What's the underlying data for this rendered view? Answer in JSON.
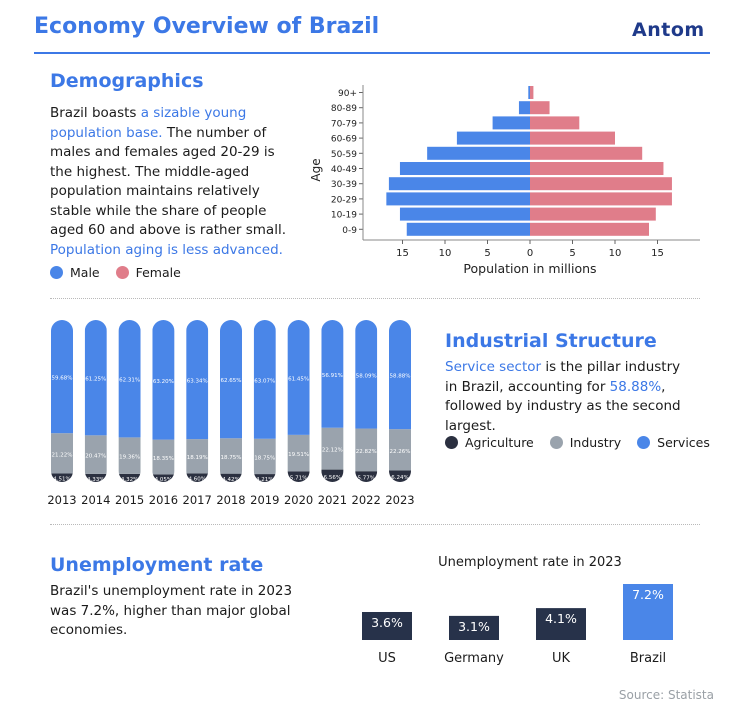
{
  "header": {
    "title": "Economy Overview of Brazil",
    "logo": "Antom"
  },
  "demographics": {
    "heading": "Demographics",
    "text_parts": [
      {
        "t": "Brazil boasts ",
        "hl": false
      },
      {
        "t": "a sizable young population base.",
        "hl": true
      },
      {
        "t": " The number of males and females aged 20-29 is the highest. The middle-aged population maintains relatively stable while the share of people aged 60 and above is rather small. ",
        "hl": false
      },
      {
        "t": "Population aging is less advanced.",
        "hl": true
      }
    ],
    "legend": [
      {
        "label": "Male",
        "color": "#4a86e8"
      },
      {
        "label": "Female",
        "color": "#e07d8a"
      }
    ]
  },
  "industrial": {
    "heading": "Industrial Structure",
    "text_parts": [
      {
        "t": "Service sector",
        "hl": true
      },
      {
        "t": " is the pillar industry in Brazil, accounting for ",
        "hl": false
      },
      {
        "t": "58.88%",
        "hl": true
      },
      {
        "t": ", followed by industry as the second largest.",
        "hl": false
      }
    ],
    "legend": [
      {
        "label": "Agriculture",
        "color": "#2b3040"
      },
      {
        "label": "Industry",
        "color": "#9aa3ad"
      },
      {
        "label": "Services",
        "color": "#4a86e8"
      }
    ]
  },
  "unemployment": {
    "heading": "Unemployment rate",
    "text": "Brazil's unemployment rate in 2023 was 7.2%, higher than major global economies."
  },
  "source": "Source: Statista",
  "chart_data": [
    {
      "type": "bar",
      "subtype": "population-pyramid",
      "ylabel": "Age",
      "xlabel": "Population in millions",
      "categories": [
        "0-9",
        "10-19",
        "20-29",
        "30-39",
        "40-49",
        "50-59",
        "60-69",
        "70-79",
        "80-89",
        "90+"
      ],
      "series": [
        {
          "name": "Male",
          "color": "#4a86e8",
          "values": [
            14.5,
            15.3,
            16.9,
            16.6,
            15.3,
            12.1,
            8.6,
            4.4,
            1.3,
            0.2
          ]
        },
        {
          "name": "Female",
          "color": "#e07d8a",
          "values": [
            14.0,
            14.8,
            16.7,
            16.7,
            15.7,
            13.2,
            10.0,
            5.8,
            2.3,
            0.4
          ]
        }
      ],
      "xticks": [
        "15",
        "10",
        "5",
        "0",
        "5",
        "10",
        "15"
      ],
      "xlim": [
        -18,
        18
      ]
    },
    {
      "type": "bar",
      "subtype": "stacked-percent",
      "categories": [
        "2013",
        "2014",
        "2015",
        "2016",
        "2017",
        "2018",
        "2019",
        "2020",
        "2021",
        "2022",
        "2023"
      ],
      "series": [
        {
          "name": "Agriculture",
          "color": "#2b3040",
          "values": [
            4.51,
            4.33,
            4.32,
            4.05,
            4.6,
            4.42,
            4.21,
            5.71,
            6.56,
            5.77,
            6.24
          ],
          "labels": [
            "4.51%",
            "4.33%",
            "4.32%",
            "4.05%",
            "4.60%",
            "4.42%",
            "4.21%",
            "5.71%",
            "6.56%",
            "5.77%",
            "6.24%"
          ]
        },
        {
          "name": "Industry",
          "color": "#9aa3ad",
          "values": [
            21.22,
            20.47,
            19.36,
            18.35,
            18.19,
            18.75,
            18.75,
            19.51,
            22.12,
            22.82,
            22.26
          ],
          "labels": [
            "21.22%",
            "20.47%",
            "19.36%",
            "18.35%",
            "18.19%",
            "18.75%",
            "18.75%",
            "19.51%",
            "22.12%",
            "22.82%",
            "22.26%"
          ]
        },
        {
          "name": "Services",
          "color": "#4a86e8",
          "values": [
            59.68,
            61.25,
            62.31,
            63.2,
            63.34,
            62.65,
            63.07,
            61.45,
            56.91,
            58.09,
            58.88
          ],
          "labels": [
            "59.68%",
            "61.25%",
            "62.31%",
            "63.20%",
            "63.34%",
            "62.65%",
            "63.07%",
            "61.45%",
            "56.91%",
            "58.09%",
            "58.88%"
          ]
        }
      ]
    },
    {
      "type": "bar",
      "title": "Unemployment rate in 2023",
      "categories": [
        "US",
        "Germany",
        "UK",
        "Brazil"
      ],
      "values": [
        3.6,
        3.1,
        4.1,
        7.2
      ],
      "labels": [
        "3.6%",
        "3.1%",
        "4.1%",
        "7.2%"
      ],
      "colors": [
        "#27324a",
        "#27324a",
        "#27324a",
        "#4a86e8"
      ]
    }
  ]
}
